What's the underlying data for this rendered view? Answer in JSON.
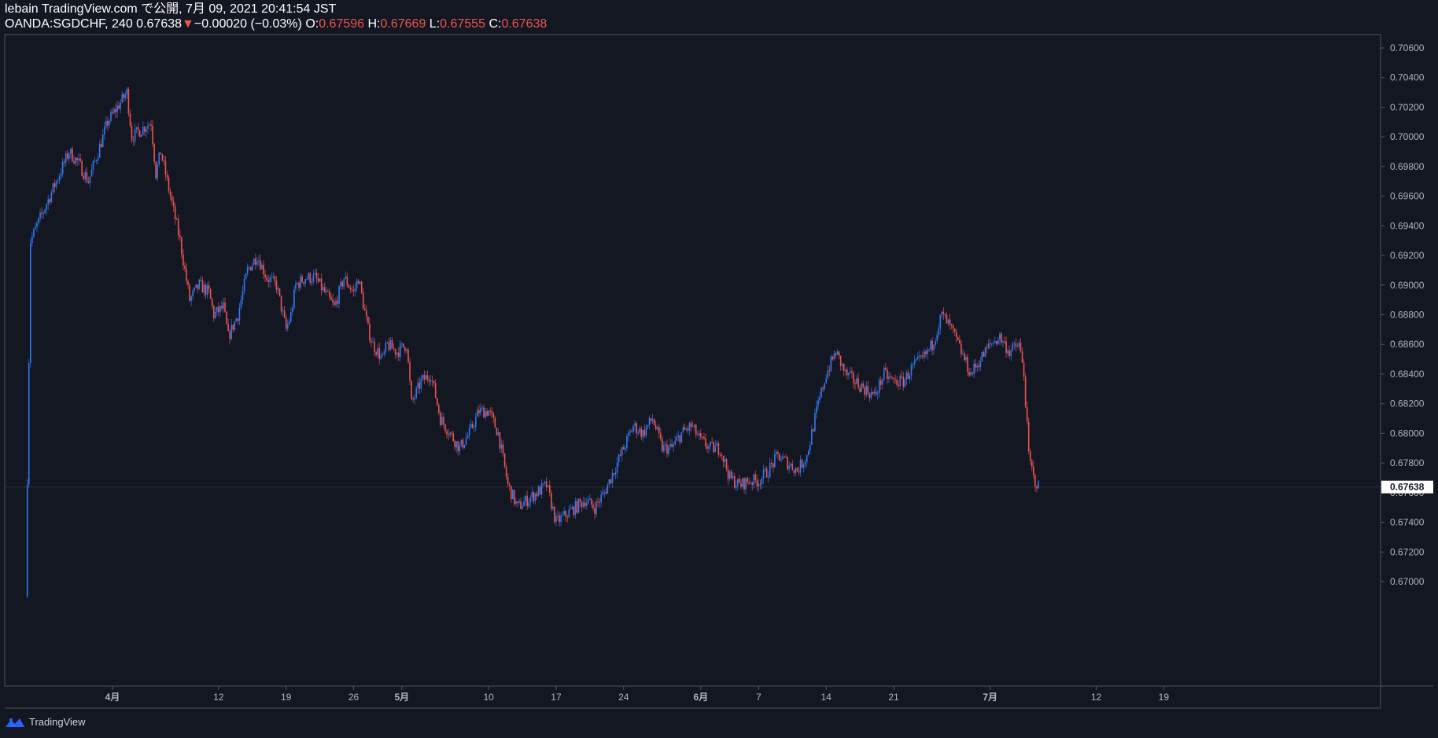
{
  "header": {
    "publish_line": "lebain TradingView.com で公開, 7月 09, 2021 20:41:54 JST",
    "symbol": "OANDA:SGDCHF, 240",
    "last": "0.67638",
    "change_arrow": "▼",
    "change": "−0.00020 (−0.03%)",
    "o_label": "O:",
    "o_value": "0.67596",
    "h_label": "H:",
    "h_value": "0.67669",
    "l_label": "L:",
    "l_value": "0.67555",
    "c_label": "C:",
    "c_value": "0.67638"
  },
  "footer": {
    "brand": "TradingView",
    "logo_icon": "tradingview-logo-icon"
  },
  "colors": {
    "background": "#131722",
    "up": "#2962ff",
    "up_light": "#3179f5",
    "down": "#ef5350",
    "axis": "#b2b5be",
    "border": "#50535e"
  },
  "chart_data": {
    "type": "candlestick",
    "symbol": "OANDA:SGDCHF",
    "interval": "240",
    "ylim": [
      0.6696,
      0.7072
    ],
    "y_ticks": [
      "0.67000",
      "0.67200",
      "0.67400",
      "0.67600",
      "0.67800",
      "0.68000",
      "0.68200",
      "0.68400",
      "0.68600",
      "0.68800",
      "0.69000",
      "0.69200",
      "0.69400",
      "0.69600",
      "0.69800",
      "0.70000",
      "0.70200",
      "0.70400",
      "0.70600"
    ],
    "x_ticks": [
      {
        "label": "4月",
        "day": 0
      },
      {
        "label": "12",
        "day": 11
      },
      {
        "label": "19",
        "day": 18
      },
      {
        "label": "26",
        "day": 25
      },
      {
        "label": "5月",
        "day": 30
      },
      {
        "label": "10",
        "day": 39
      },
      {
        "label": "17",
        "day": 46
      },
      {
        "label": "24",
        "day": 53
      },
      {
        "label": "6月",
        "day": 61
      },
      {
        "label": "7",
        "day": 67
      },
      {
        "label": "14",
        "day": 74
      },
      {
        "label": "21",
        "day": 81
      },
      {
        "label": "7月",
        "day": 91
      },
      {
        "label": "12",
        "day": 102
      },
      {
        "label": "19",
        "day": 109
      }
    ],
    "last_price": 0.67638,
    "last_price_label": "0.67638",
    "close_path": [
      [
        -9.0,
        0.669
      ],
      [
        -8.5,
        0.693
      ],
      [
        -7.5,
        0.6945
      ],
      [
        -6.5,
        0.696
      ],
      [
        -5.5,
        0.6975
      ],
      [
        -4.5,
        0.699
      ],
      [
        -3.5,
        0.6982
      ],
      [
        -2.5,
        0.697
      ],
      [
        -1.5,
        0.699
      ],
      [
        -0.5,
        0.701
      ],
      [
        0.5,
        0.702
      ],
      [
        1.5,
        0.703
      ],
      [
        2.0,
        0.7
      ],
      [
        3.0,
        0.7005
      ],
      [
        4.0,
        0.701
      ],
      [
        4.5,
        0.6975
      ],
      [
        5.0,
        0.699
      ],
      [
        6.0,
        0.696
      ],
      [
        7.0,
        0.693
      ],
      [
        8.0,
        0.689
      ],
      [
        9.0,
        0.69
      ],
      [
        10.0,
        0.6895
      ],
      [
        10.5,
        0.688
      ],
      [
        11.5,
        0.6885
      ],
      [
        12.0,
        0.6865
      ],
      [
        13.0,
        0.688
      ],
      [
        14.0,
        0.691
      ],
      [
        15.0,
        0.692
      ],
      [
        16.0,
        0.6905
      ],
      [
        17.0,
        0.69
      ],
      [
        18.0,
        0.687
      ],
      [
        18.5,
        0.688
      ],
      [
        19.0,
        0.69
      ],
      [
        20.0,
        0.6905
      ],
      [
        21.0,
        0.6905
      ],
      [
        22.0,
        0.6895
      ],
      [
        23.0,
        0.6885
      ],
      [
        24.0,
        0.6905
      ],
      [
        25.0,
        0.6895
      ],
      [
        25.5,
        0.6905
      ],
      [
        26.5,
        0.687
      ],
      [
        27.0,
        0.686
      ],
      [
        28.0,
        0.685
      ],
      [
        28.5,
        0.686
      ],
      [
        29.5,
        0.6855
      ],
      [
        30.5,
        0.686
      ],
      [
        31.0,
        0.682
      ],
      [
        32.0,
        0.6835
      ],
      [
        33.0,
        0.684
      ],
      [
        34.0,
        0.681
      ],
      [
        35.0,
        0.68
      ],
      [
        36.0,
        0.679
      ],
      [
        37.0,
        0.68
      ],
      [
        38.0,
        0.6815
      ],
      [
        39.0,
        0.6815
      ],
      [
        40.0,
        0.68
      ],
      [
        41.0,
        0.6765
      ],
      [
        42.0,
        0.675
      ],
      [
        43.0,
        0.6755
      ],
      [
        44.0,
        0.676
      ],
      [
        45.0,
        0.6765
      ],
      [
        46.0,
        0.674
      ],
      [
        47.0,
        0.6745
      ],
      [
        48.0,
        0.675
      ],
      [
        49.0,
        0.6755
      ],
      [
        50.0,
        0.675
      ],
      [
        51.0,
        0.676
      ],
      [
        52.0,
        0.6775
      ],
      [
        53.0,
        0.679
      ],
      [
        54.0,
        0.6805
      ],
      [
        55.0,
        0.68
      ],
      [
        56.0,
        0.681
      ],
      [
        57.0,
        0.679
      ],
      [
        58.0,
        0.679
      ],
      [
        59.0,
        0.68
      ],
      [
        60.0,
        0.6805
      ],
      [
        61.0,
        0.6795
      ],
      [
        62.0,
        0.679
      ],
      [
        63.0,
        0.679
      ],
      [
        64.0,
        0.677
      ],
      [
        65.0,
        0.6765
      ],
      [
        66.0,
        0.6768
      ],
      [
        67.0,
        0.6768
      ],
      [
        68.0,
        0.6775
      ],
      [
        69.0,
        0.6785
      ],
      [
        70.0,
        0.678
      ],
      [
        71.0,
        0.6775
      ],
      [
        72.0,
        0.6785
      ],
      [
        73.0,
        0.6815
      ],
      [
        74.0,
        0.684
      ],
      [
        75.0,
        0.6855
      ],
      [
        76.0,
        0.684
      ],
      [
        77.0,
        0.6835
      ],
      [
        78.0,
        0.683
      ],
      [
        79.0,
        0.6825
      ],
      [
        80.0,
        0.684
      ],
      [
        81.0,
        0.6835
      ],
      [
        82.0,
        0.6835
      ],
      [
        83.0,
        0.6845
      ],
      [
        84.0,
        0.685
      ],
      [
        85.0,
        0.686
      ],
      [
        86.0,
        0.688
      ],
      [
        87.0,
        0.687
      ],
      [
        88.0,
        0.6855
      ],
      [
        89.0,
        0.684
      ],
      [
        90.0,
        0.685
      ],
      [
        91.0,
        0.686
      ],
      [
        92.0,
        0.6865
      ],
      [
        93.0,
        0.6855
      ],
      [
        94.0,
        0.686
      ],
      [
        94.5,
        0.684
      ],
      [
        95.0,
        0.6785
      ],
      [
        95.5,
        0.677
      ],
      [
        96.0,
        0.6764
      ]
    ]
  }
}
